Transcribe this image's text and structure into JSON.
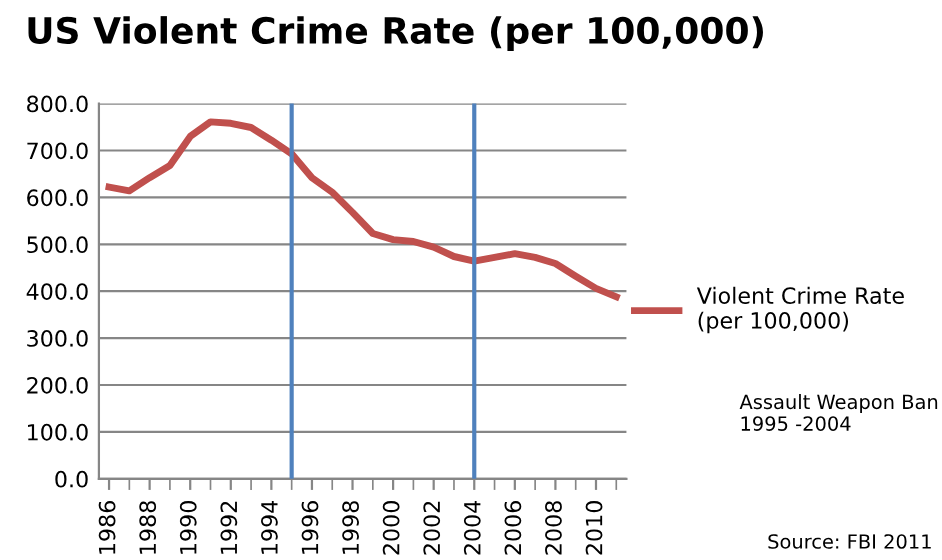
{
  "chart_data": {
    "type": "line",
    "title": "US Violent Crime Rate (per 100,000)",
    "x": [
      1986,
      1987,
      1988,
      1989,
      1990,
      1991,
      1992,
      1993,
      1994,
      1995,
      1996,
      1997,
      1998,
      1999,
      2000,
      2001,
      2002,
      2003,
      2004,
      2005,
      2006,
      2007,
      2008,
      2009,
      2010,
      2011
    ],
    "series": [
      {
        "name": "Violent Crime Rate\n(per 100,000)",
        "color": "#c0504d",
        "values": [
          622,
          614,
          642,
          668,
          730,
          761,
          758,
          749,
          722,
          693,
          642,
          611,
          568,
          523,
          510,
          506,
          494,
          474,
          464,
          472,
          480,
          472,
          459,
          432,
          406,
          388
        ]
      }
    ],
    "xlim": [
      1985.5,
      2011.5
    ],
    "xticks": [
      1986,
      1988,
      1990,
      1992,
      1994,
      1996,
      1998,
      2000,
      2002,
      2004,
      2006,
      2008,
      2010
    ],
    "ylim": [
      0,
      800
    ],
    "yticks": [
      {
        "value": 0,
        "label": "0.0"
      },
      {
        "value": 100,
        "label": "100.0"
      },
      {
        "value": 200,
        "label": "200.0"
      },
      {
        "value": 300,
        "label": "300.0"
      },
      {
        "value": 400,
        "label": "400.0"
      },
      {
        "value": 500,
        "label": "500.0"
      },
      {
        "value": 600,
        "label": "600.0"
      },
      {
        "value": 700,
        "label": "700.0"
      },
      {
        "value": 800,
        "label": "800.0"
      }
    ],
    "ref_lines": [
      {
        "axis": "x",
        "value": 1995,
        "label": null,
        "color": "#4f81bd"
      },
      {
        "axis": "x",
        "value": 2004,
        "label": null,
        "color": "#4f81bd"
      }
    ],
    "annotations": [
      "Assault Weapon Ban\n1995 -2004",
      "Source: FBI 2011"
    ],
    "grid": "y",
    "legend": "right",
    "line_style": "solid",
    "marker": "none"
  }
}
